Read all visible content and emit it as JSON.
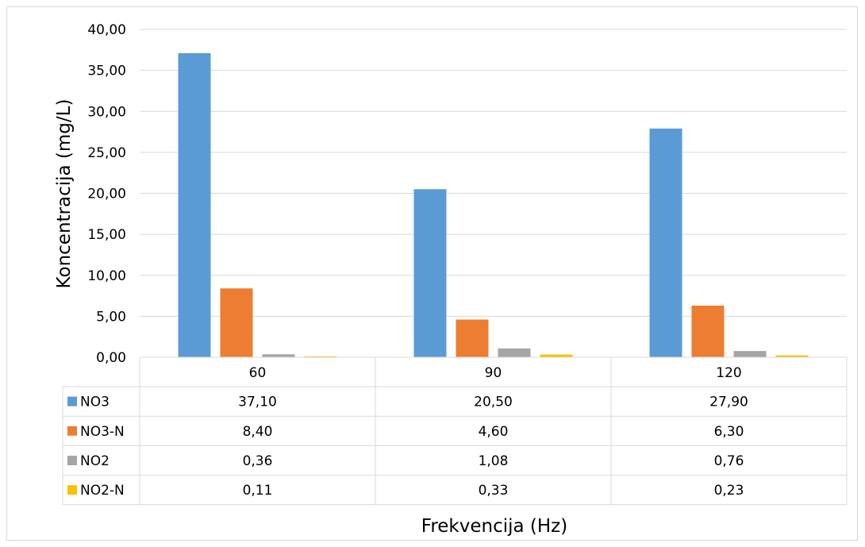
{
  "chart_data": {
    "type": "bar",
    "title": "",
    "xlabel": "Frekvencija (Hz)",
    "ylabel": "Koncentracija (mg/L)",
    "categories": [
      "60",
      "90",
      "120"
    ],
    "ylim": [
      0,
      40
    ],
    "yticks": [
      "0,00",
      "5,00",
      "10,00",
      "15,00",
      "20,00",
      "25,00",
      "30,00",
      "35,00",
      "40,00"
    ],
    "ytick_values": [
      0,
      5,
      10,
      15,
      20,
      25,
      30,
      35,
      40
    ],
    "grid": true,
    "legend": "data-table",
    "series": [
      {
        "name": "NO3",
        "color": "#5b9bd5",
        "values": [
          37.1,
          20.5,
          27.9
        ],
        "labels": [
          "37,10",
          "20,50",
          "27,90"
        ]
      },
      {
        "name": "NO3-N",
        "color": "#ed7d31",
        "values": [
          8.4,
          4.6,
          6.3
        ],
        "labels": [
          "8,40",
          "4,60",
          "6,30"
        ]
      },
      {
        "name": "NO2",
        "color": "#a5a5a5",
        "values": [
          0.36,
          1.08,
          0.76
        ],
        "labels": [
          "0,36",
          "1,08",
          "0,76"
        ]
      },
      {
        "name": "NO2-N",
        "color": "#ffc000",
        "values": [
          0.11,
          0.33,
          0.23
        ],
        "labels": [
          "0,11",
          "0,33",
          "0,23"
        ]
      }
    ]
  }
}
